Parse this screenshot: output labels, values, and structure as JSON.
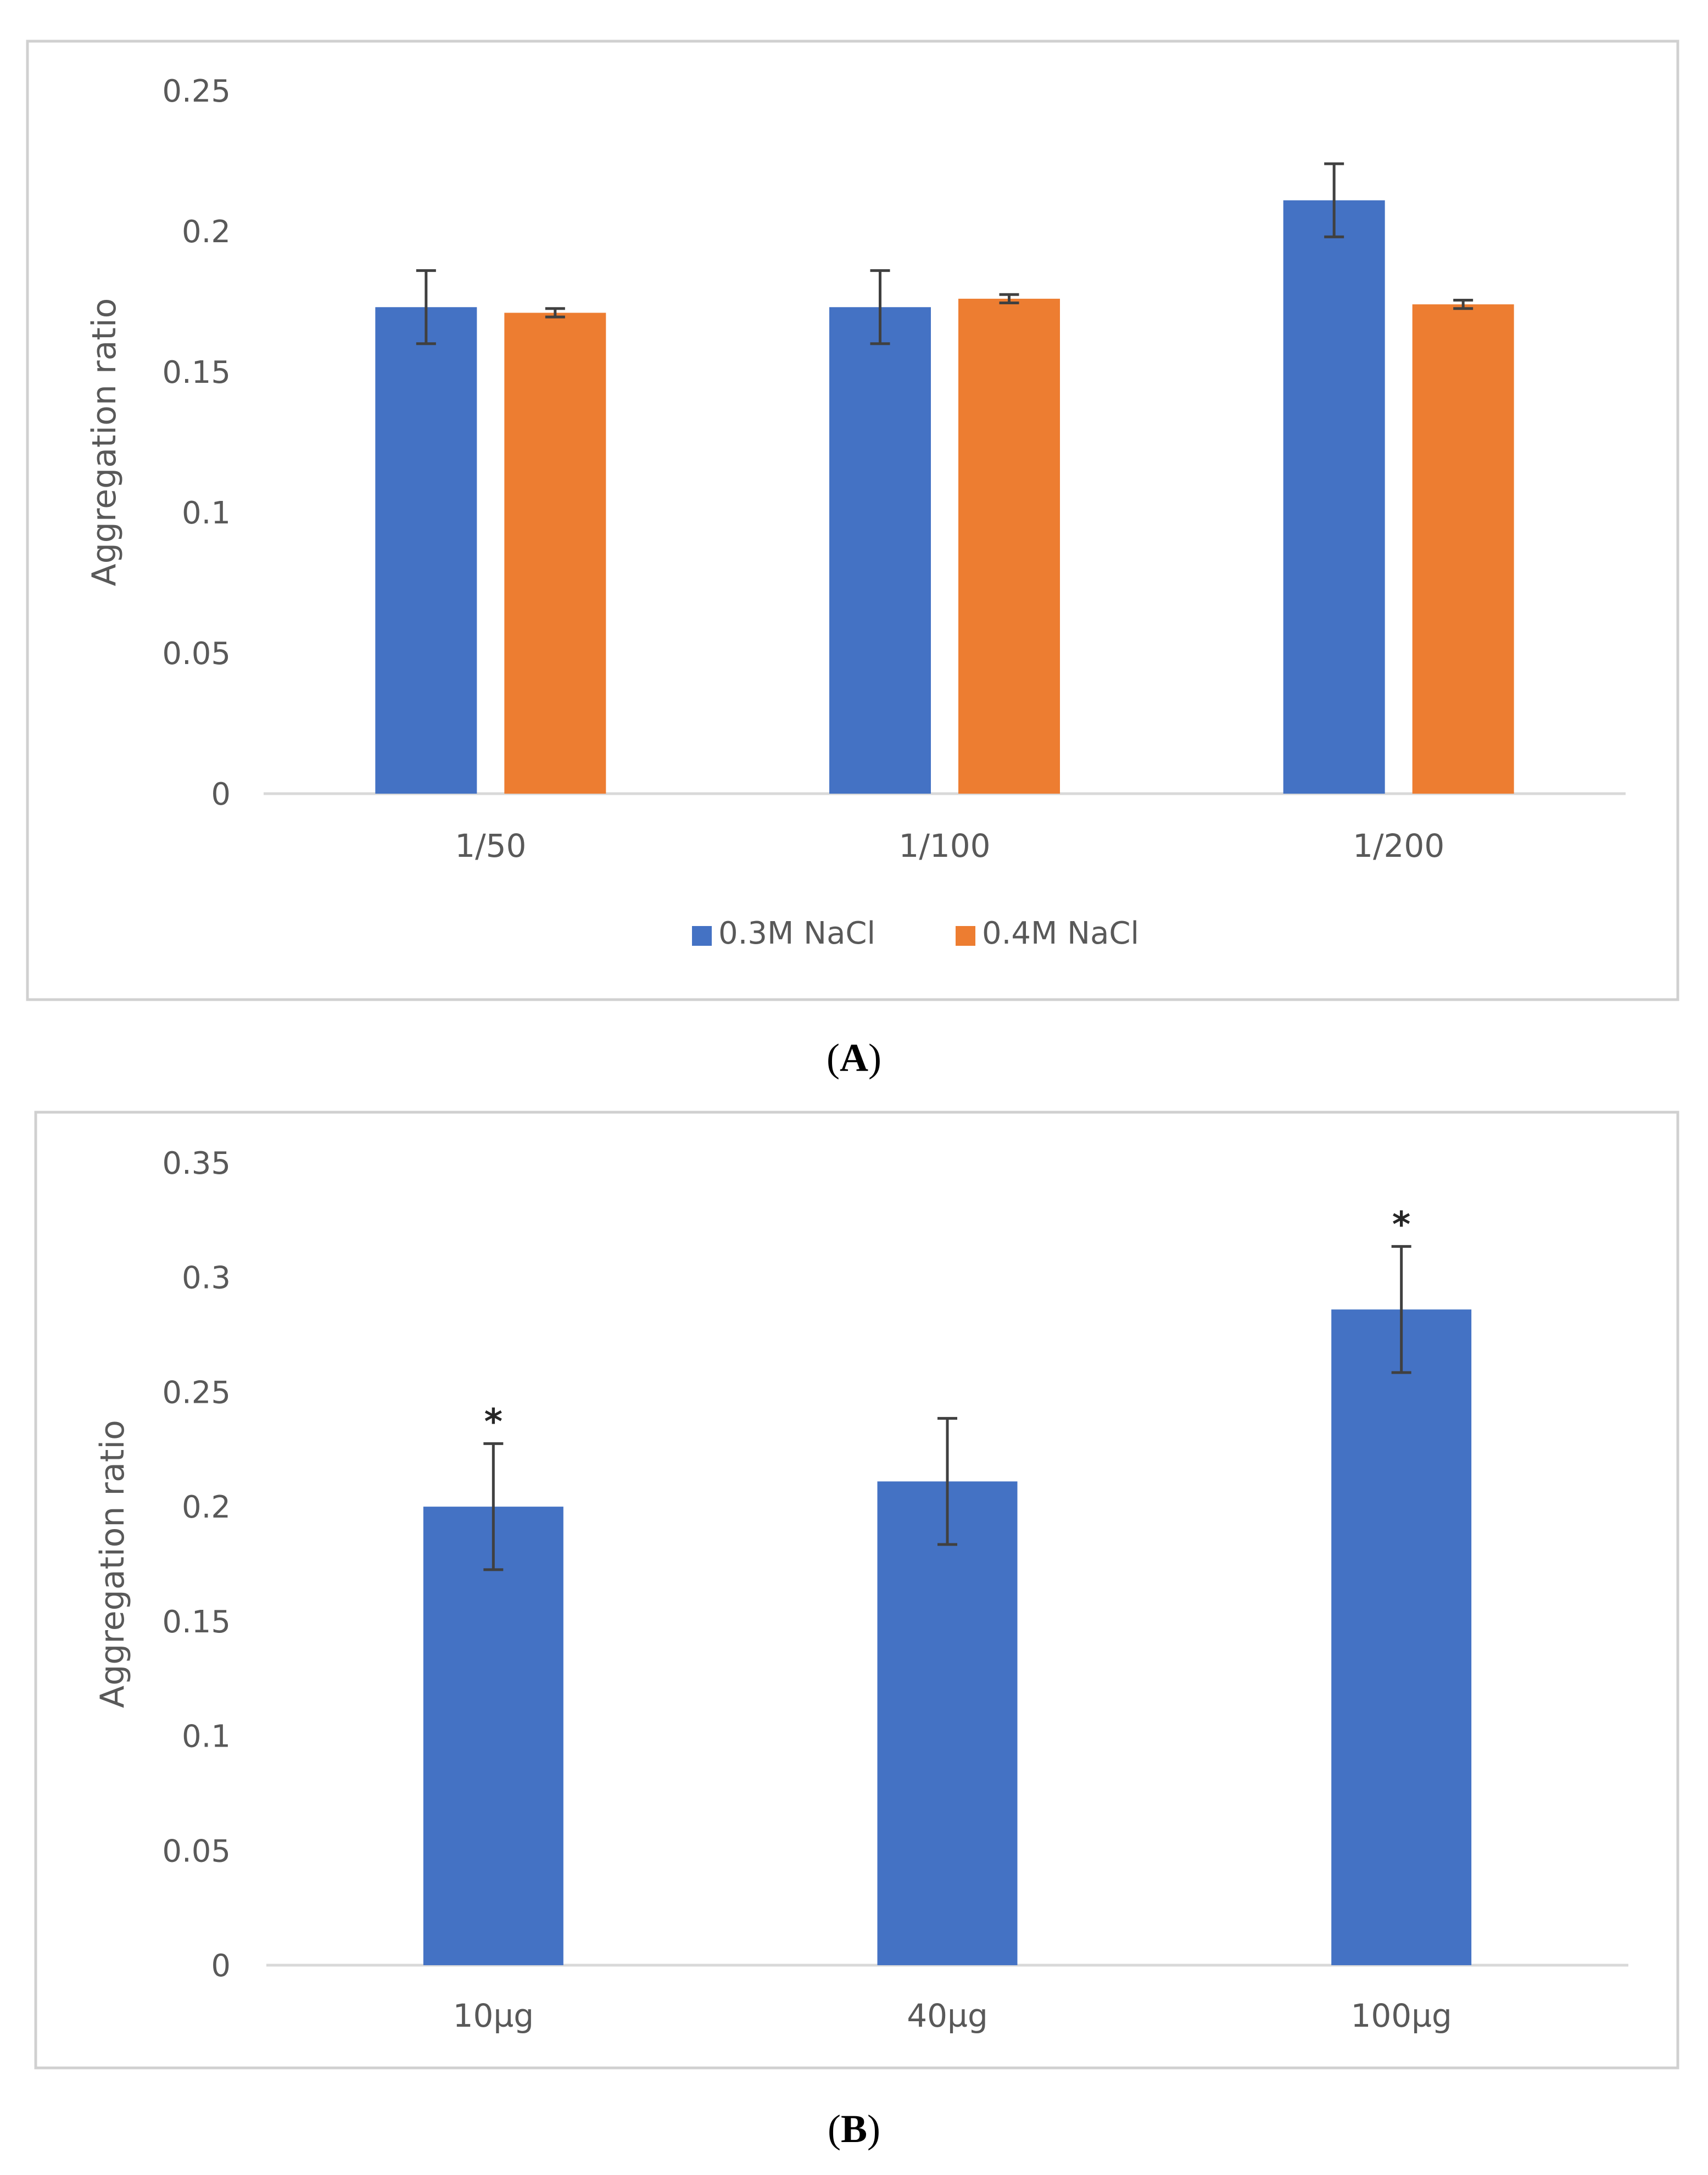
{
  "colors": {
    "series_blue": "#4472C4",
    "series_orange": "#ED7D31",
    "axis": "#D9D9D9",
    "frame": "#D0D0D0",
    "tick_text": "#595959",
    "error_bar": "#404040"
  },
  "captions": {
    "a_letter": "A",
    "b_letter": "B"
  },
  "chart_data": [
    {
      "id": "A",
      "type": "bar",
      "title": "",
      "xlabel": "",
      "ylabel": "Aggregation ratio",
      "ylim": [
        0,
        0.25
      ],
      "yticks": [
        "0",
        "0.05",
        "0.1",
        "0.15",
        "0.2",
        "0.25"
      ],
      "categories": [
        "1/50",
        "1/100",
        "1/200"
      ],
      "legend": {
        "placement": "bottom"
      },
      "grid": false,
      "series": [
        {
          "name": "0.3M NaCl",
          "color": "#4472C4",
          "values": [
            0.173,
            0.173,
            0.211
          ],
          "errors": [
            0.013,
            0.013,
            0.013
          ]
        },
        {
          "name": "0.4M NaCl",
          "color": "#ED7D31",
          "values": [
            0.171,
            0.176,
            0.174
          ],
          "errors": [
            0.0015,
            0.0015,
            0.0015
          ]
        }
      ],
      "annotations": []
    },
    {
      "id": "B",
      "type": "bar",
      "title": "",
      "xlabel": "",
      "ylabel": "Aggregation ratio",
      "ylim": [
        0,
        0.35
      ],
      "yticks": [
        "0",
        "0.05",
        "0.1",
        "0.15",
        "0.2",
        "0.25",
        "0.3",
        "0.35"
      ],
      "categories": [
        "10µg",
        "40µg",
        "100µg"
      ],
      "grid": false,
      "series": [
        {
          "color": "#4472C4",
          "values": [
            0.2,
            0.211,
            0.286
          ],
          "errors": [
            0.0275,
            0.0275,
            0.0275
          ]
        }
      ],
      "annotations": [
        {
          "category": "10µg",
          "text": "*"
        },
        {
          "category": "100µg",
          "text": "*"
        }
      ]
    }
  ]
}
